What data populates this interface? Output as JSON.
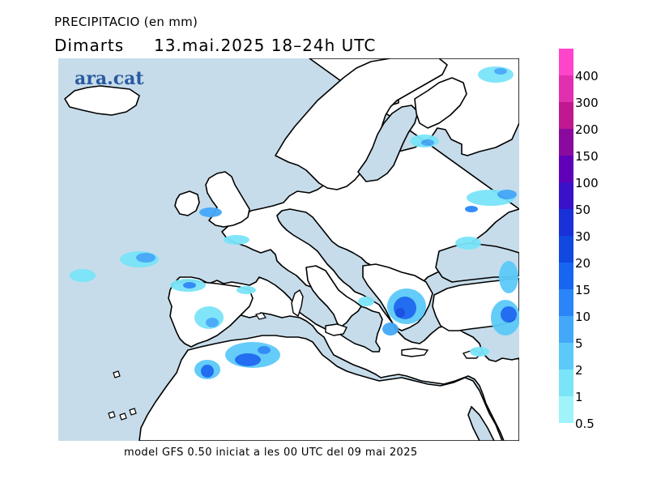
{
  "title": {
    "variable": "PRECIPITACIO (en mm)",
    "day": "Dimarts",
    "datetime": "13.mai.2025 18–24h UTC"
  },
  "logo": "ara.cat",
  "footer": "model GFS 0.50 iniciat a les 00 UTC del 09 mai 2025",
  "colors": {
    "sea": "#c6dcea",
    "land": "#ffffff",
    "coast": "#000000"
  },
  "legend": {
    "items": [
      {
        "label": "400",
        "color": "#ff44cc"
      },
      {
        "label": "300",
        "color": "#e030b0"
      },
      {
        "label": "200",
        "color": "#c01890"
      },
      {
        "label": "150",
        "color": "#8a0aa0"
      },
      {
        "label": "100",
        "color": "#6000b8"
      },
      {
        "label": "50",
        "color": "#3a10c8"
      },
      {
        "label": "30",
        "color": "#1a30d8"
      },
      {
        "label": "20",
        "color": "#1048e0"
      },
      {
        "label": "15",
        "color": "#1866f0"
      },
      {
        "label": "10",
        "color": "#2a86f8"
      },
      {
        "label": "5",
        "color": "#44a8f8"
      },
      {
        "label": "2",
        "color": "#5ccaf8"
      },
      {
        "label": "1",
        "color": "#7ae4f8"
      },
      {
        "label": "0.5",
        "color": "#9ef4fa"
      }
    ]
  }
}
